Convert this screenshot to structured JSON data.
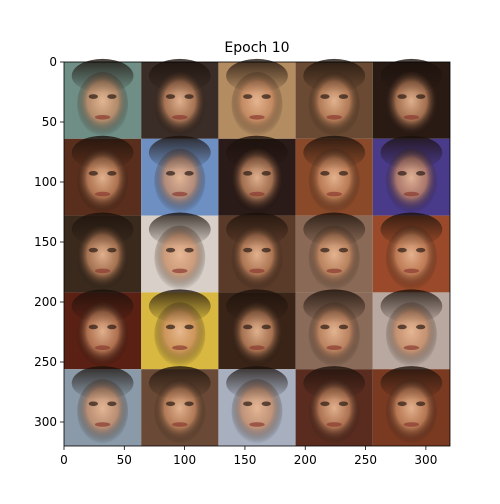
{
  "chart_data": {
    "type": "heatmap",
    "title": "Epoch 10",
    "xlabel": "",
    "ylabel": "",
    "xlim": [
      0,
      320
    ],
    "ylim": [
      320,
      0
    ],
    "x_ticks": [
      0,
      50,
      100,
      150,
      200,
      250,
      300
    ],
    "y_ticks": [
      0,
      50,
      100,
      150,
      200,
      250,
      300
    ],
    "grid": false,
    "image": {
      "description_rows": 5,
      "description_cols": 5,
      "tile_size": 64,
      "tiles": [
        [
          "#6f8f86",
          "#3a2c26",
          "#b48c62",
          "#6a4a32",
          "#2a1a14"
        ],
        [
          "#5a2e1c",
          "#6d8fc2",
          "#2a1a18",
          "#8a4a2a",
          "#4a3a8a"
        ],
        [
          "#3a2a1e",
          "#d8d0c8",
          "#5a3a28",
          "#8a6a56",
          "#9a4a2a"
        ],
        [
          "#5a2014",
          "#d8b840",
          "#3a2418",
          "#8a6a58",
          "#b8a8a0"
        ],
        [
          "#8a9aa8",
          "#6a4a36",
          "#a8b0c0",
          "#5a2c20",
          "#7a3a22"
        ]
      ]
    }
  }
}
